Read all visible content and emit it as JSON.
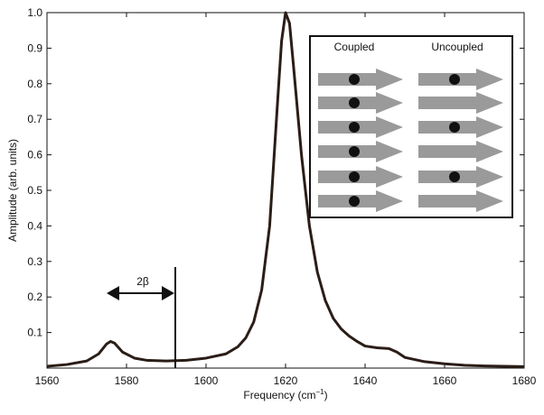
{
  "chart_data": {
    "type": "line",
    "ylabel": "Amplitude (arb. units)",
    "xlabel": "Frequency (cm",
    "xlabel_sup": "−1",
    "xlabel_end": ")",
    "xlim": [
      1560,
      1680
    ],
    "ylim": [
      0,
      1
    ],
    "xticks": [
      1560,
      1580,
      1600,
      1620,
      1640,
      1660,
      1680
    ],
    "yticks": [
      0.1,
      0.2,
      0.3,
      0.4,
      0.5,
      0.6,
      0.7,
      0.8,
      0.9,
      {
        "value": 1,
        "label": "1.0"
      }
    ],
    "series": [
      {
        "color": "#2b1d17",
        "x": [
          1560,
          1565,
          1570,
          1573,
          1575,
          1576,
          1577,
          1579,
          1582,
          1585,
          1590,
          1595,
          1600,
          1605,
          1608,
          1610,
          1612,
          1614,
          1616,
          1618,
          1619,
          1620,
          1621,
          1622,
          1624,
          1626,
          1628,
          1630,
          1632,
          1634,
          1636,
          1638,
          1640,
          1643,
          1646,
          1648,
          1650,
          1655,
          1660,
          1665,
          1670,
          1680
        ],
        "values": [
          0.005,
          0.01,
          0.02,
          0.04,
          0.068,
          0.075,
          0.07,
          0.045,
          0.028,
          0.022,
          0.02,
          0.022,
          0.028,
          0.04,
          0.06,
          0.085,
          0.13,
          0.22,
          0.4,
          0.75,
          0.92,
          1.0,
          0.97,
          0.85,
          0.6,
          0.4,
          0.27,
          0.19,
          0.14,
          0.11,
          0.09,
          0.075,
          0.062,
          0.057,
          0.055,
          0.045,
          0.03,
          0.018,
          0.012,
          0.008,
          0.006,
          0.004
        ]
      }
    ],
    "annotations": [
      "2β"
    ],
    "inset": {
      "left_title": "Coupled",
      "right_title": "Uncoupled"
    }
  }
}
